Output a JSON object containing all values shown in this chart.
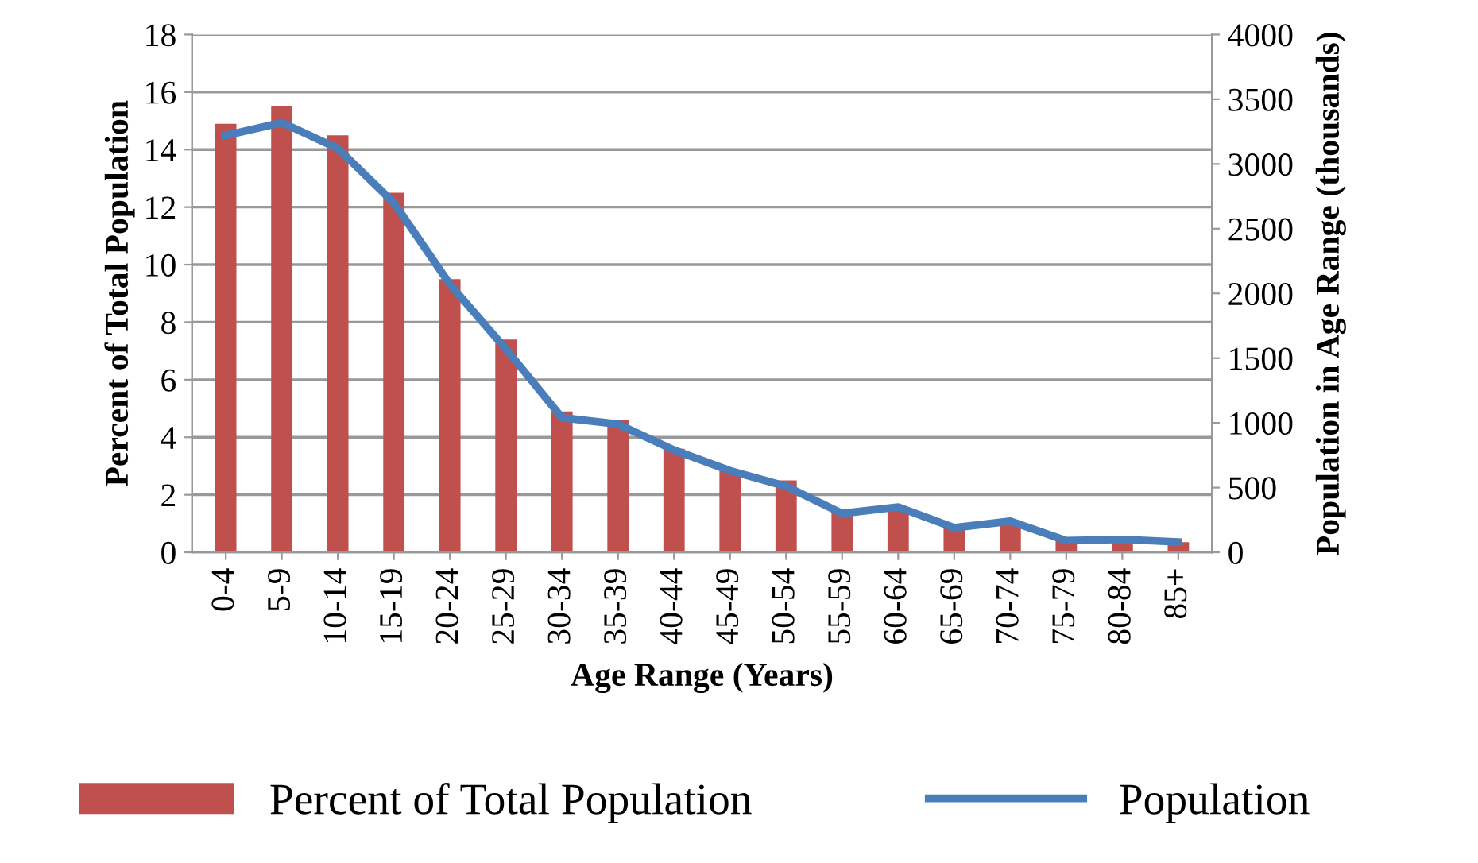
{
  "chart_data": {
    "type": "bar",
    "xlabel": "Age Range (Years)",
    "ylabel": "Percent of Total Population",
    "y2label": "Population in Age Range (thousands)",
    "categories": [
      "0-4",
      "5-9",
      "10-14",
      "15-19",
      "20-24",
      "25-29",
      "30-34",
      "35-39",
      "40-44",
      "45-49",
      "50-54",
      "55-59",
      "60-64",
      "65-69",
      "70-74",
      "75-79",
      "80-84",
      "85+"
    ],
    "series": [
      {
        "name": "Percent of Total Population",
        "color": "#c0504d",
        "values": [
          14.9,
          15.5,
          14.5,
          12.5,
          9.5,
          7.4,
          4.9,
          4.6,
          3.6,
          2.85,
          2.5,
          1.45,
          1.5,
          0.9,
          1.0,
          0.4,
          0.45,
          0.35
        ]
      },
      {
        "name": "Population",
        "type": "line",
        "axis": "y2",
        "color": "#4a7ebb",
        "values": [
          3220,
          3320,
          3120,
          2700,
          2070,
          1570,
          1040,
          990,
          790,
          630,
          510,
          300,
          350,
          190,
          240,
          90,
          100,
          80
        ]
      }
    ],
    "ylim": [
      0,
      18
    ],
    "yticks": [
      0,
      2,
      4,
      6,
      8,
      10,
      12,
      14,
      16,
      18
    ],
    "y2lim": [
      0,
      4000
    ],
    "y2ticks": [
      0,
      500,
      1000,
      1500,
      2000,
      2500,
      3000,
      3500,
      4000
    ],
    "grid": "y",
    "legend": "bottom",
    "marker": "none",
    "line_style": "solid"
  }
}
